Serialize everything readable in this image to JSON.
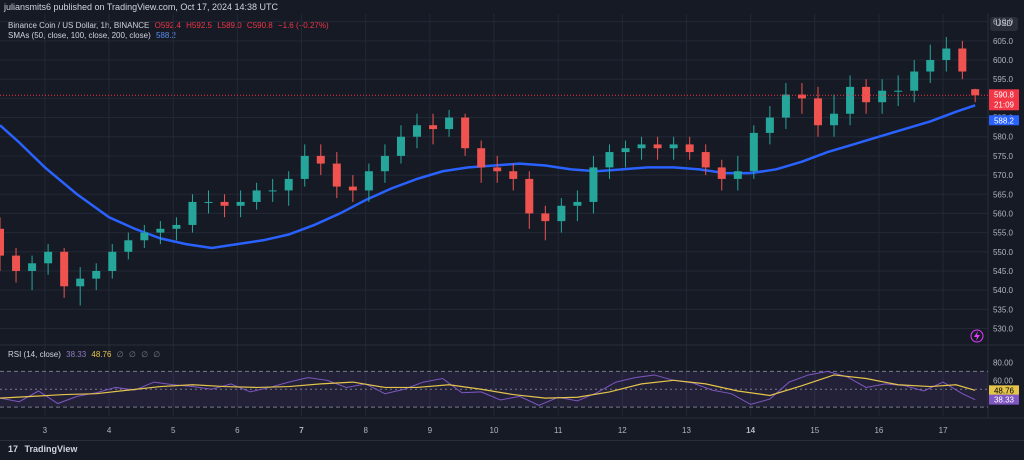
{
  "header": {
    "credit": "juliansmits6 published on TradingView.com, Oct 17, 2024 14:38 UTC",
    "symbol": "Binance Coin / US Dollar, 1h, BINANCE",
    "ohlc": {
      "o_label": "O",
      "o": "592.4",
      "h_label": "H",
      "h": "592.5",
      "l_label": "L",
      "l": "589.0",
      "c_label": "C",
      "c": "590.8",
      "change": "−1.6 (−0.27%)"
    },
    "sma_label": "SMAs (50, close, 100, close, 200, close)",
    "sma_value": "588.2",
    "currency_button": "USD"
  },
  "rsi_legend": {
    "label": "RSI (14, close)",
    "rsi": "38.33",
    "ma": "48.76",
    "empties": [
      "∅",
      "∅",
      "∅",
      "∅"
    ]
  },
  "footer": {
    "brand": "TradingView",
    "logo_glyph": "17"
  },
  "price_labels": {
    "last": "590.8",
    "countdown": "21:09",
    "sma": "588.2",
    "rsi_ma": "48.76",
    "rsi": "38.33"
  },
  "colors": {
    "up": "#26a69a",
    "down": "#ef5350",
    "sma": "#2962ff",
    "rsi": "#7e57c2",
    "rsi_ma": "#e5c44b",
    "grid": "#232836",
    "bg": "#161a25",
    "last_line": "#f23645"
  },
  "chart_data": [
    {
      "type": "candlestick",
      "title": "Binance Coin / US Dollar, 1h, BINANCE",
      "y_ticks": [
        530,
        535,
        540,
        545,
        550,
        555,
        560,
        565,
        570,
        575,
        580,
        585,
        590,
        595,
        600,
        605,
        610
      ],
      "y_tick_labels": [
        "530.0",
        "535.0",
        "540.0",
        "545.0",
        "550.0",
        "555.0",
        "560.0",
        "565.0",
        "570.0",
        "575.0",
        "580.0",
        "585.0",
        "590.0",
        "595.0",
        "600.0",
        "605.0",
        "610.0"
      ],
      "ylim": [
        527,
        612
      ],
      "x_tick_labels": [
        "3",
        "4",
        "5",
        "6",
        "7",
        "8",
        "9",
        "10",
        "11",
        "12",
        "13",
        "14",
        "15",
        "16",
        "17"
      ],
      "x_tick_bold": [
        false,
        false,
        false,
        false,
        true,
        false,
        false,
        false,
        false,
        false,
        false,
        true,
        false,
        false,
        false
      ],
      "xlim": [
        2.3,
        17.7
      ],
      "series": [
        {
          "name": "SMA 200",
          "color": "#2962ff",
          "x": [
            2.3,
            2.6,
            3.0,
            3.5,
            4.0,
            4.4,
            4.8,
            5.2,
            5.6,
            6.0,
            6.4,
            6.8,
            7.2,
            7.6,
            8.0,
            8.4,
            8.8,
            9.2,
            9.6,
            10.0,
            10.4,
            10.8,
            11.2,
            11.6,
            12.0,
            12.4,
            12.8,
            13.2,
            13.6,
            14.0,
            14.4,
            14.8,
            15.2,
            15.6,
            16.0,
            16.4,
            16.8,
            17.2,
            17.5
          ],
          "y": [
            583.0,
            578.5,
            572.0,
            565.0,
            559.0,
            556.0,
            553.5,
            552.0,
            551.0,
            552.0,
            553.0,
            554.5,
            557.0,
            560.0,
            563.5,
            566.5,
            569.0,
            571.0,
            572.0,
            572.5,
            573.0,
            572.5,
            571.5,
            571.0,
            571.5,
            572.0,
            572.0,
            571.5,
            570.5,
            570.5,
            571.5,
            573.5,
            576.0,
            578.0,
            580.0,
            582.0,
            584.0,
            586.5,
            588.2
          ]
        },
        {
          "name": "OHLC",
          "up_color": "#26a69a",
          "down_color": "#ef5350",
          "x": [
            2.3,
            2.55,
            2.8,
            3.05,
            3.3,
            3.55,
            3.8,
            4.05,
            4.3,
            4.55,
            4.8,
            5.05,
            5.3,
            5.55,
            5.8,
            6.05,
            6.3,
            6.55,
            6.8,
            7.05,
            7.3,
            7.55,
            7.8,
            8.05,
            8.3,
            8.55,
            8.8,
            9.05,
            9.3,
            9.55,
            9.8,
            10.05,
            10.3,
            10.55,
            10.8,
            11.05,
            11.3,
            11.55,
            11.8,
            12.05,
            12.3,
            12.55,
            12.8,
            13.05,
            13.3,
            13.55,
            13.8,
            14.05,
            14.3,
            14.55,
            14.8,
            15.05,
            15.3,
            15.55,
            15.8,
            16.05,
            16.3,
            16.55,
            16.8,
            17.05,
            17.3,
            17.5
          ],
          "open": [
            556,
            549,
            545,
            547,
            550,
            541,
            543,
            545,
            550,
            553,
            555,
            556,
            557,
            563,
            563,
            562,
            563,
            566,
            566,
            569,
            575,
            573,
            567,
            566,
            571,
            575,
            580,
            583,
            582,
            585,
            577,
            572,
            571,
            569,
            560,
            558,
            562,
            563,
            572,
            576,
            577,
            578,
            577,
            578,
            576,
            572,
            569,
            571,
            581,
            585,
            591,
            590,
            583,
            586,
            593,
            589,
            592,
            592,
            597,
            600,
            603,
            592.4
          ],
          "close": [
            549,
            545,
            547,
            550,
            541,
            543,
            545,
            550,
            553,
            555,
            556,
            557,
            563,
            563,
            562,
            563,
            566,
            566,
            569,
            575,
            573,
            567,
            566,
            571,
            575,
            580,
            583,
            582,
            585,
            577,
            572,
            571,
            569,
            560,
            558,
            562,
            563,
            572,
            576,
            577,
            578,
            577,
            578,
            576,
            572,
            569,
            571,
            581,
            585,
            591,
            590,
            583,
            586,
            593,
            589,
            592,
            592,
            597,
            600,
            603,
            597,
            590.8
          ],
          "high": [
            559,
            551,
            549,
            552,
            551,
            546,
            547,
            552,
            555,
            557,
            558,
            559,
            565,
            566,
            565,
            566,
            568,
            569,
            571,
            578,
            578,
            576,
            570,
            573,
            578,
            583,
            586,
            586,
            587,
            586,
            579,
            575,
            573,
            571,
            562,
            564,
            566,
            575,
            578,
            579,
            580,
            580,
            580,
            580,
            578,
            574,
            575,
            583,
            588,
            594,
            594,
            593,
            591,
            596,
            595,
            595,
            596,
            600,
            604,
            606,
            605,
            592.5
          ],
          "low": [
            545,
            542,
            540,
            544,
            538,
            536,
            540,
            543,
            548,
            551,
            552,
            553,
            555,
            560,
            559,
            559,
            561,
            563,
            562,
            567,
            570,
            564,
            563,
            563,
            568,
            573,
            577,
            578,
            580,
            575,
            568,
            568,
            566,
            556,
            553,
            555,
            558,
            560,
            569,
            572,
            574,
            574,
            574,
            574,
            570,
            566,
            566,
            569,
            578,
            582,
            586,
            580,
            580,
            583,
            586,
            586,
            588,
            589,
            594,
            597,
            595,
            589.0
          ]
        }
      ]
    },
    {
      "type": "line",
      "title": "RSI (14, close)",
      "y_ticks": [
        40,
        60,
        80
      ],
      "y_tick_labels": [
        "40.00",
        "60.00",
        "80.00"
      ],
      "ylim": [
        20,
        85
      ],
      "bands": [
        30,
        50,
        70
      ],
      "xlim": [
        2.3,
        17.7
      ],
      "series": [
        {
          "name": "RSI",
          "color": "#7e57c2",
          "x": [
            2.3,
            2.6,
            2.9,
            3.2,
            3.5,
            3.8,
            4.1,
            4.4,
            4.7,
            5.0,
            5.3,
            5.6,
            5.9,
            6.2,
            6.5,
            6.8,
            7.1,
            7.4,
            7.7,
            8.0,
            8.3,
            8.6,
            8.9,
            9.2,
            9.5,
            9.8,
            10.1,
            10.4,
            10.7,
            11.0,
            11.3,
            11.6,
            11.9,
            12.2,
            12.5,
            12.8,
            13.1,
            13.4,
            13.7,
            14.0,
            14.3,
            14.6,
            14.9,
            15.2,
            15.5,
            15.8,
            16.1,
            16.4,
            16.7,
            17.0,
            17.3,
            17.5
          ],
          "y": [
            40,
            36,
            48,
            34,
            42,
            46,
            52,
            49,
            58,
            55,
            53,
            50,
            56,
            47,
            52,
            58,
            63,
            60,
            52,
            56,
            45,
            50,
            58,
            62,
            46,
            47,
            38,
            42,
            32,
            41,
            37,
            46,
            58,
            63,
            66,
            60,
            57,
            49,
            45,
            33,
            39,
            58,
            66,
            70,
            64,
            52,
            56,
            54,
            48,
            58,
            45,
            38.33
          ]
        },
        {
          "name": "RSI MA",
          "color": "#e5c44b",
          "x": [
            2.3,
            2.8,
            3.3,
            3.8,
            4.3,
            4.8,
            5.3,
            5.8,
            6.3,
            6.8,
            7.3,
            7.8,
            8.3,
            8.8,
            9.3,
            9.8,
            10.3,
            10.8,
            11.3,
            11.8,
            12.3,
            12.8,
            13.3,
            13.8,
            14.3,
            14.8,
            15.3,
            15.8,
            16.3,
            16.8,
            17.2,
            17.5
          ],
          "y": [
            40,
            42,
            44,
            45,
            49,
            53,
            55,
            53,
            52,
            53,
            56,
            58,
            52,
            52,
            55,
            50,
            44,
            40,
            41,
            47,
            56,
            60,
            56,
            48,
            43,
            54,
            66,
            62,
            55,
            53,
            55,
            48.76
          ]
        }
      ]
    }
  ]
}
